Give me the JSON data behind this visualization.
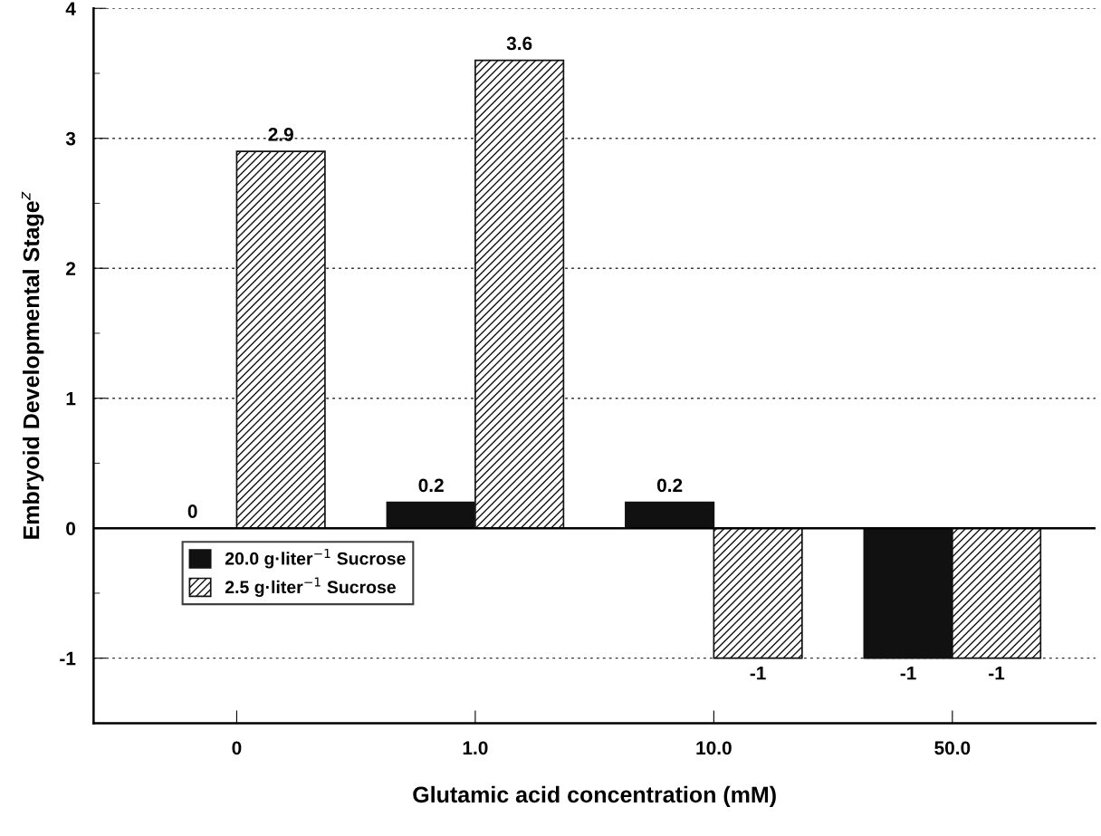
{
  "chart_data": {
    "type": "bar",
    "xlabel": "Glutamic acid concentration (mM)",
    "ylabel": "Embryoid Developmental Stage$^{z}$",
    "categories": [
      "0",
      "1.0",
      "10.0",
      "50.0"
    ],
    "series": [
      {
        "name": "20.0 g·liter$^{−1}$ Sucrose",
        "color": "#111111",
        "values": [
          0,
          0.2,
          0.2,
          -1
        ]
      },
      {
        "name": "2.5 g·liter$^{−1}$ Sucrose",
        "color": "#ffffff",
        "values": [
          2.9,
          3.6,
          -1,
          -1
        ]
      }
    ],
    "ylim": [
      -1.5,
      4
    ],
    "yticks": [
      -1,
      0,
      1,
      2,
      3,
      4
    ],
    "grid": "y",
    "legend": "center left",
    "data_labels": true,
    "ref_lines": [
      {
        "axis": "y",
        "value": 0,
        "color": "#000000",
        "line_style": "solid"
      }
    ]
  }
}
